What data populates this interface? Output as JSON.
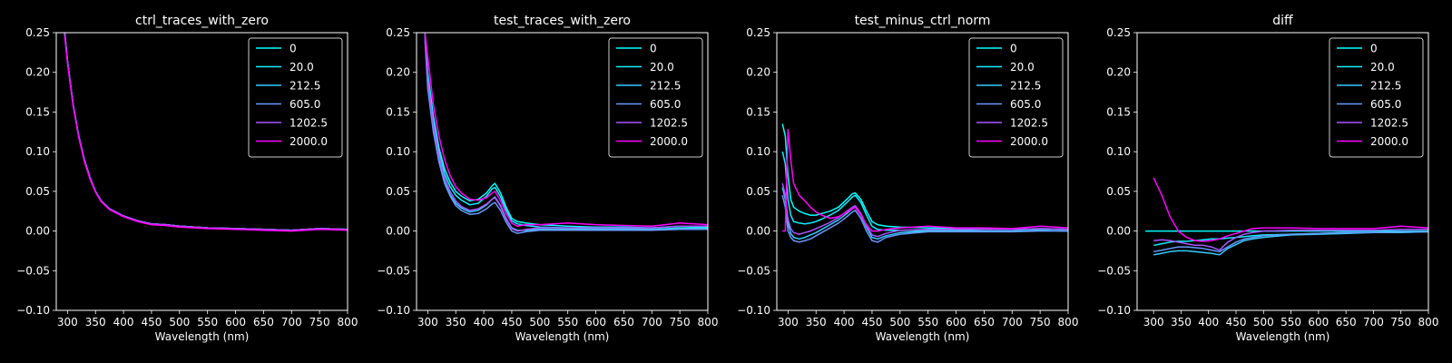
{
  "chart_data": [
    {
      "type": "line",
      "title": "ctrl_traces_with_zero",
      "xlabel": "Wavelength (nm)",
      "ylabel": "",
      "xlim": [
        280,
        800
      ],
      "ylim": [
        -0.1,
        0.25
      ],
      "xticks": [
        "300",
        "350",
        "400",
        "450",
        "500",
        "550",
        "600",
        "650",
        "700",
        "750",
        "800"
      ],
      "yticks": [
        "−0.10",
        "−0.05",
        "0.00",
        "0.05",
        "0.10",
        "0.15",
        "0.20",
        "0.25"
      ],
      "legend_position": "top-right",
      "x": [
        295,
        300,
        310,
        320,
        330,
        340,
        350,
        360,
        375,
        400,
        425,
        450,
        475,
        500,
        550,
        600,
        650,
        700,
        750,
        800
      ],
      "series": [
        {
          "name": "0",
          "color": "#00ffff",
          "values": [
            0.25,
            0.215,
            0.16,
            0.12,
            0.09,
            0.068,
            0.05,
            0.038,
            0.028,
            0.019,
            0.013,
            0.009,
            0.008,
            0.006,
            0.004,
            0.003,
            0.002,
            0.001,
            0.003,
            0.002
          ]
        },
        {
          "name": "20.0",
          "color": "#11eeff",
          "values": [
            0.25,
            0.215,
            0.16,
            0.12,
            0.09,
            0.068,
            0.05,
            0.038,
            0.028,
            0.019,
            0.013,
            0.009,
            0.008,
            0.006,
            0.004,
            0.003,
            0.002,
            0.001,
            0.003,
            0.002
          ]
        },
        {
          "name": "212.5",
          "color": "#33ccff",
          "values": [
            0.25,
            0.215,
            0.16,
            0.12,
            0.09,
            0.068,
            0.05,
            0.038,
            0.028,
            0.019,
            0.013,
            0.009,
            0.008,
            0.006,
            0.004,
            0.003,
            0.002,
            0.001,
            0.003,
            0.002
          ]
        },
        {
          "name": "605.0",
          "color": "#6699ff",
          "values": [
            0.25,
            0.215,
            0.16,
            0.12,
            0.09,
            0.068,
            0.05,
            0.038,
            0.028,
            0.019,
            0.013,
            0.009,
            0.008,
            0.006,
            0.004,
            0.003,
            0.002,
            0.001,
            0.003,
            0.002
          ]
        },
        {
          "name": "1202.5",
          "color": "#aa55ff",
          "values": [
            0.25,
            0.215,
            0.16,
            0.12,
            0.09,
            0.068,
            0.05,
            0.038,
            0.028,
            0.019,
            0.013,
            0.009,
            0.008,
            0.006,
            0.004,
            0.003,
            0.002,
            0.001,
            0.003,
            0.002
          ]
        },
        {
          "name": "2000.0",
          "color": "#ff00ff",
          "values": [
            0.245,
            0.212,
            0.158,
            0.118,
            0.088,
            0.066,
            0.049,
            0.037,
            0.027,
            0.018,
            0.012,
            0.008,
            0.007,
            0.005,
            0.003,
            0.002,
            0.001,
            0.0,
            0.002,
            0.001
          ]
        }
      ]
    },
    {
      "type": "line",
      "title": "test_traces_with_zero",
      "xlabel": "Wavelength (nm)",
      "ylabel": "",
      "xlim": [
        280,
        800
      ],
      "ylim": [
        -0.1,
        0.25
      ],
      "xticks": [
        "300",
        "350",
        "400",
        "450",
        "500",
        "550",
        "600",
        "650",
        "700",
        "750",
        "800"
      ],
      "yticks": [
        "−0.10",
        "−0.05",
        "0.00",
        "0.05",
        "0.10",
        "0.15",
        "0.20",
        "0.25"
      ],
      "legend_position": "top-right",
      "x": [
        295,
        300,
        310,
        320,
        330,
        340,
        350,
        360,
        375,
        390,
        405,
        415,
        420,
        430,
        440,
        450,
        460,
        475,
        500,
        550,
        600,
        650,
        700,
        750,
        800
      ],
      "series": [
        {
          "name": "0",
          "color": "#00ffff",
          "values": [
            0.25,
            0.2,
            0.145,
            0.105,
            0.078,
            0.062,
            0.05,
            0.044,
            0.038,
            0.04,
            0.048,
            0.057,
            0.06,
            0.048,
            0.03,
            0.016,
            0.012,
            0.01,
            0.008,
            0.006,
            0.005,
            0.005,
            0.004,
            0.006,
            0.005
          ]
        },
        {
          "name": "20.0",
          "color": "#11eeff",
          "values": [
            0.25,
            0.195,
            0.14,
            0.1,
            0.072,
            0.056,
            0.045,
            0.039,
            0.033,
            0.035,
            0.044,
            0.053,
            0.055,
            0.043,
            0.026,
            0.013,
            0.009,
            0.007,
            0.005,
            0.004,
            0.003,
            0.003,
            0.002,
            0.004,
            0.004
          ]
        },
        {
          "name": "212.5",
          "color": "#33ccff",
          "values": [
            0.245,
            0.185,
            0.13,
            0.09,
            0.062,
            0.046,
            0.035,
            0.029,
            0.024,
            0.026,
            0.033,
            0.04,
            0.043,
            0.032,
            0.016,
            0.004,
            0.001,
            0.001,
            0.002,
            0.002,
            0.002,
            0.002,
            0.002,
            0.003,
            0.003
          ]
        },
        {
          "name": "605.0",
          "color": "#6699ff",
          "values": [
            0.24,
            0.18,
            0.125,
            0.087,
            0.06,
            0.044,
            0.032,
            0.026,
            0.021,
            0.022,
            0.028,
            0.034,
            0.036,
            0.026,
            0.011,
            0.0,
            -0.003,
            -0.001,
            0.001,
            0.001,
            0.001,
            0.001,
            0.001,
            0.002,
            0.002
          ]
        },
        {
          "name": "1202.5",
          "color": "#aa55ff",
          "values": [
            0.245,
            0.19,
            0.135,
            0.095,
            0.067,
            0.05,
            0.038,
            0.031,
            0.026,
            0.028,
            0.034,
            0.04,
            0.042,
            0.031,
            0.015,
            0.003,
            0.0,
            0.002,
            0.004,
            0.004,
            0.004,
            0.004,
            0.004,
            0.006,
            0.006
          ]
        },
        {
          "name": "2000.0",
          "color": "#ff00ff",
          "values": [
            0.25,
            0.22,
            0.16,
            0.12,
            0.09,
            0.07,
            0.056,
            0.048,
            0.04,
            0.039,
            0.042,
            0.048,
            0.05,
            0.038,
            0.022,
            0.01,
            0.006,
            0.008,
            0.008,
            0.01,
            0.008,
            0.007,
            0.006,
            0.01,
            0.008
          ]
        }
      ]
    },
    {
      "type": "line",
      "title": "test_minus_ctrl_norm",
      "xlabel": "Wavelength (nm)",
      "ylabel": "",
      "xlim": [
        280,
        800
      ],
      "ylim": [
        -0.1,
        0.25
      ],
      "xticks": [
        "300",
        "350",
        "400",
        "450",
        "500",
        "550",
        "600",
        "650",
        "700",
        "750",
        "800"
      ],
      "yticks": [
        "−0.10",
        "−0.05",
        "0.00",
        "0.05",
        "0.10",
        "0.15",
        "0.20",
        "0.25"
      ],
      "legend_position": "top-right",
      "x": [
        290,
        295,
        300,
        305,
        310,
        320,
        330,
        340,
        350,
        360,
        375,
        390,
        405,
        415,
        420,
        430,
        440,
        450,
        460,
        475,
        500,
        550,
        600,
        650,
        700,
        750,
        800
      ],
      "series": [
        {
          "name": "0",
          "color": "#00ffff",
          "values": [
            0.135,
            0.12,
            0.07,
            0.04,
            0.03,
            0.025,
            0.022,
            0.02,
            0.02,
            0.022,
            0.025,
            0.03,
            0.04,
            0.047,
            0.048,
            0.04,
            0.025,
            0.012,
            0.008,
            0.006,
            0.005,
            0.004,
            0.003,
            0.003,
            0.002,
            0.003,
            0.002
          ]
        },
        {
          "name": "20.0",
          "color": "#11eeff",
          "values": [
            0.1,
            0.085,
            0.04,
            0.02,
            0.012,
            0.01,
            0.009,
            0.01,
            0.012,
            0.015,
            0.02,
            0.026,
            0.036,
            0.043,
            0.045,
            0.036,
            0.02,
            0.006,
            0.002,
            0.001,
            0.001,
            0.001,
            0.001,
            0.0,
            0.0,
            0.001,
            0.0
          ]
        },
        {
          "name": "212.5",
          "color": "#33ccff",
          "values": [
            0.055,
            0.04,
            0.01,
            -0.003,
            -0.008,
            -0.01,
            -0.008,
            -0.005,
            -0.002,
            0.002,
            0.008,
            0.014,
            0.022,
            0.028,
            0.03,
            0.02,
            0.005,
            -0.008,
            -0.01,
            -0.006,
            -0.002,
            0.0,
            0.0,
            0.0,
            0.0,
            0.001,
            0.0
          ]
        },
        {
          "name": "605.0",
          "color": "#6699ff",
          "values": [
            0.045,
            0.03,
            0.0,
            -0.008,
            -0.012,
            -0.014,
            -0.012,
            -0.01,
            -0.006,
            -0.002,
            0.004,
            0.01,
            0.018,
            0.024,
            0.026,
            0.016,
            0.0,
            -0.012,
            -0.014,
            -0.008,
            -0.004,
            -0.001,
            -0.001,
            -0.001,
            -0.001,
            0.0,
            0.0
          ]
        },
        {
          "name": "1202.5",
          "color": "#aa55ff",
          "values": [
            0.06,
            0.045,
            0.015,
            0.003,
            -0.002,
            -0.004,
            -0.002,
            0.0,
            0.003,
            0.006,
            0.011,
            0.017,
            0.025,
            0.03,
            0.032,
            0.022,
            0.007,
            -0.005,
            -0.007,
            -0.003,
            0.001,
            0.002,
            0.002,
            0.002,
            0.002,
            0.003,
            0.002
          ]
        },
        {
          "name": "2000.0",
          "color": "#ff00ff",
          "values": [
            0.0,
            0.0,
            0.128,
            0.09,
            0.06,
            0.045,
            0.038,
            0.03,
            0.024,
            0.02,
            0.016,
            0.018,
            0.024,
            0.028,
            0.03,
            0.02,
            0.008,
            0.0,
            0.0,
            0.002,
            0.004,
            0.006,
            0.004,
            0.004,
            0.003,
            0.006,
            0.004
          ]
        }
      ]
    },
    {
      "type": "line",
      "title": "diff",
      "xlabel": "Wavelength (nm)",
      "ylabel": "",
      "xlim": [
        270,
        800
      ],
      "ylim": [
        -0.1,
        0.25
      ],
      "xticks": [
        "300",
        "350",
        "400",
        "450",
        "500",
        "550",
        "600",
        "650",
        "700",
        "750",
        "800"
      ],
      "yticks": [
        "−0.10",
        "−0.05",
        "0.00",
        "0.05",
        "0.10",
        "0.15",
        "0.20",
        "0.25"
      ],
      "legend_position": "top-right",
      "x": [
        285,
        300,
        315,
        330,
        345,
        360,
        375,
        390,
        405,
        420,
        435,
        450,
        465,
        480,
        500,
        550,
        600,
        650,
        700,
        750,
        800
      ],
      "series": [
        {
          "name": "0",
          "color": "#00ffff",
          "values": [
            0.0,
            0.0,
            0.0,
            0.0,
            0.0,
            0.0,
            0.0,
            0.0,
            0.0,
            0.0,
            0.0,
            0.0,
            0.0,
            0.0,
            0.0,
            0.0,
            0.0,
            0.0,
            0.0,
            0.0,
            0.0
          ]
        },
        {
          "name": "20.0",
          "color": "#11eeff",
          "values": [
            null,
            -0.018,
            -0.016,
            -0.014,
            -0.013,
            -0.013,
            -0.012,
            -0.011,
            -0.01,
            -0.01,
            -0.009,
            -0.008,
            -0.007,
            -0.006,
            -0.005,
            -0.004,
            -0.003,
            -0.002,
            -0.002,
            -0.001,
            -0.001
          ]
        },
        {
          "name": "212.5",
          "color": "#33ccff",
          "values": [
            null,
            -0.03,
            -0.028,
            -0.026,
            -0.025,
            -0.025,
            -0.026,
            -0.027,
            -0.028,
            -0.03,
            -0.022,
            -0.017,
            -0.012,
            -0.01,
            -0.008,
            -0.005,
            -0.004,
            -0.003,
            -0.002,
            -0.002,
            -0.001
          ]
        },
        {
          "name": "605.0",
          "color": "#6699ff",
          "values": [
            null,
            -0.026,
            -0.024,
            -0.022,
            -0.02,
            -0.02,
            -0.021,
            -0.022,
            -0.024,
            -0.026,
            -0.02,
            -0.014,
            -0.01,
            -0.008,
            -0.006,
            -0.004,
            -0.003,
            -0.002,
            -0.002,
            -0.001,
            -0.001
          ]
        },
        {
          "name": "1202.5",
          "color": "#aa55ff",
          "values": [
            null,
            -0.012,
            -0.011,
            -0.012,
            -0.014,
            -0.016,
            -0.018,
            -0.018,
            -0.02,
            -0.024,
            -0.014,
            -0.008,
            -0.004,
            -0.002,
            0.0,
            0.001,
            0.001,
            0.001,
            0.001,
            0.002,
            0.002
          ]
        },
        {
          "name": "2000.0",
          "color": "#ff00ff",
          "values": [
            null,
            0.067,
            0.045,
            0.018,
            0.0,
            -0.008,
            -0.012,
            -0.013,
            -0.012,
            -0.01,
            -0.006,
            -0.003,
            0.0,
            0.003,
            0.004,
            0.004,
            0.003,
            0.003,
            0.003,
            0.006,
            0.004
          ]
        }
      ]
    }
  ]
}
